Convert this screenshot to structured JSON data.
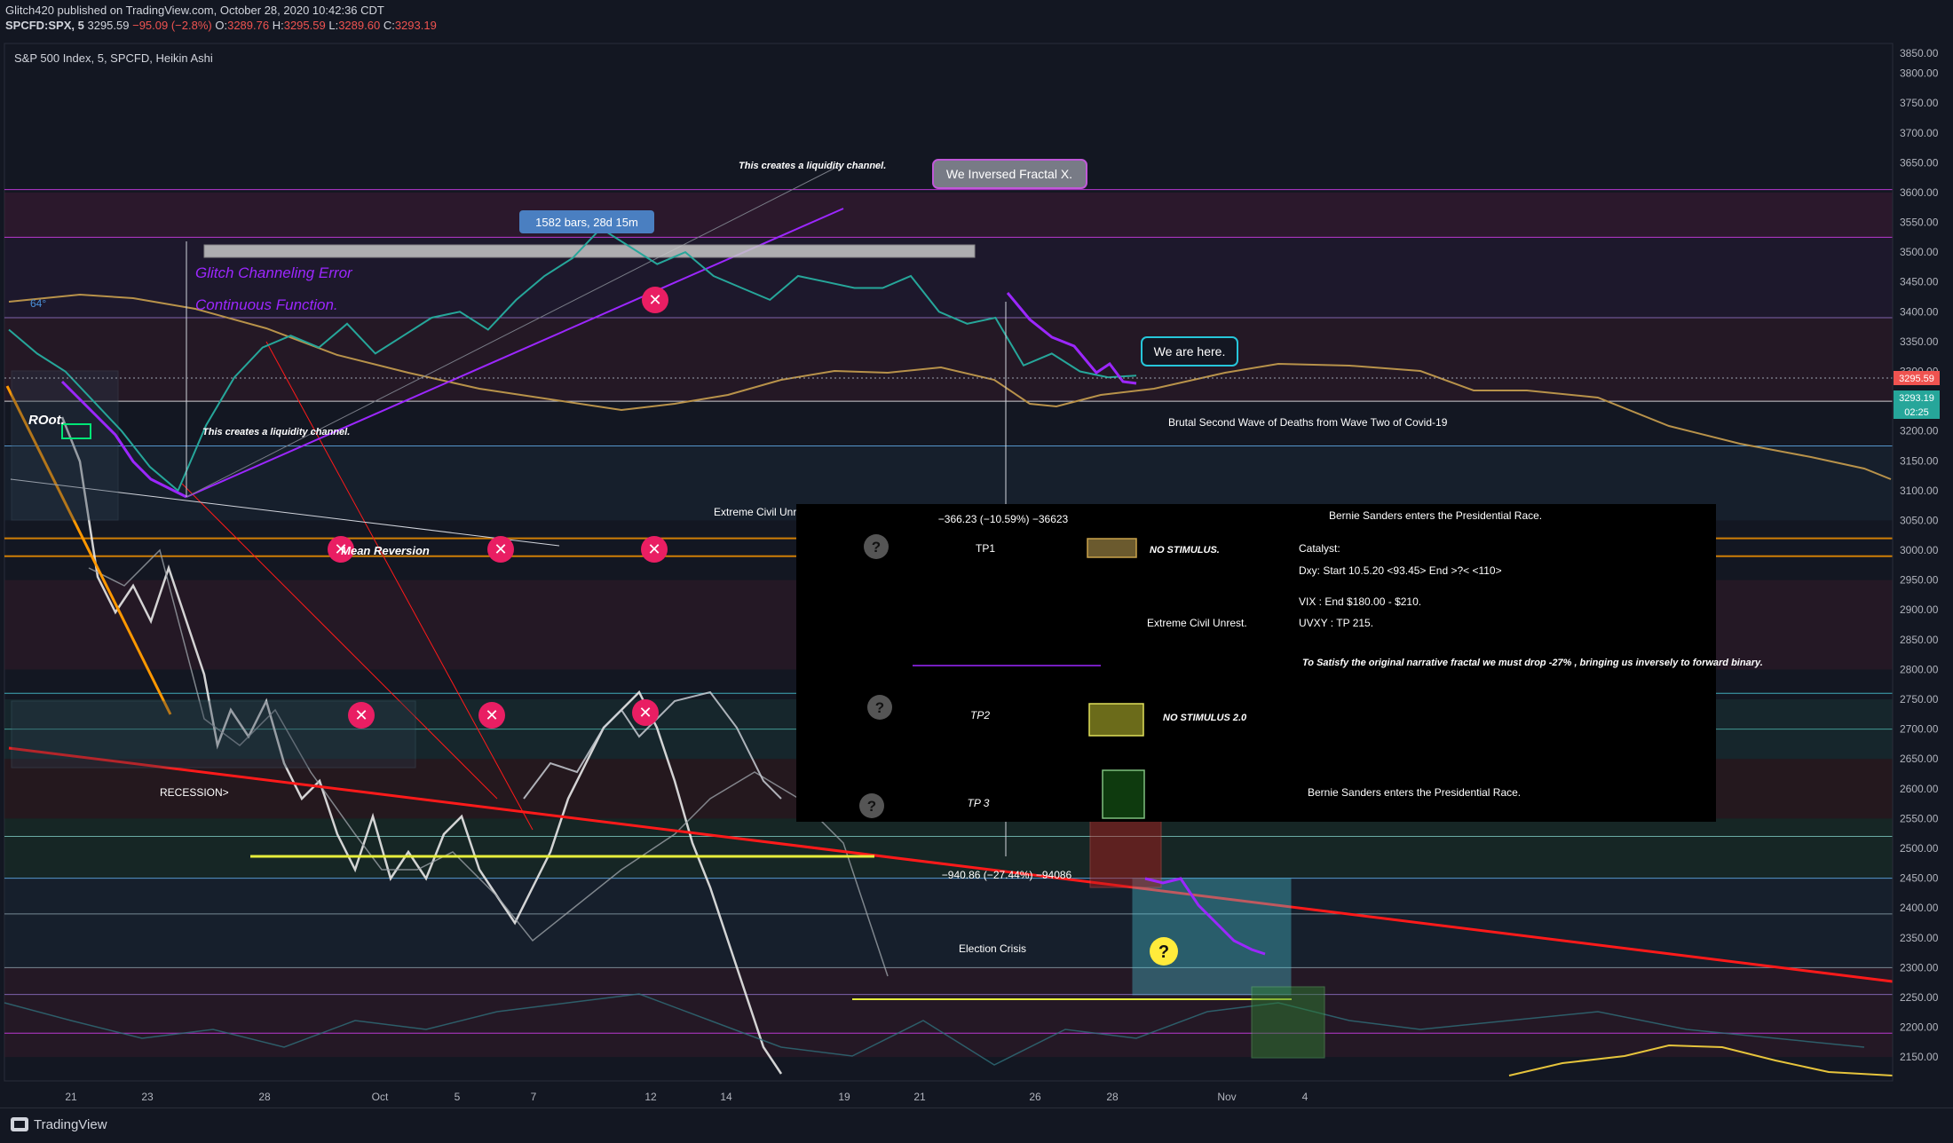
{
  "header": {
    "publisher_line": "Glitch420 published on TradingView.com, October 28, 2020 10:42:36 CDT",
    "symbol": "SPCFD:SPX, 5",
    "price": "3295.59",
    "change": "−95.09 (−2.8%)",
    "o_label": "O:",
    "o_value": "3289.76",
    "h_label": "H:",
    "h_value": "3295.59",
    "l_label": "L:",
    "l_value": "3289.60",
    "c_label": "C:",
    "c_value": "3293.19"
  },
  "legend": "S&P 500 Index, 5, SPCFD, Heikin Ashi",
  "footer": {
    "brand": "TradingView"
  },
  "colors": {
    "background": "#131722",
    "axis_text": "#b2b5be",
    "purple": "#9c27ff",
    "orange": "#ff9800",
    "red_trend": "#ff1a1a",
    "gold_ma": "#b8924a",
    "teal_box": "#4dd0e1",
    "candle_up": "#26a69a",
    "candle_down": "#ef5350"
  },
  "chart_data": {
    "type": "line",
    "title": "S&P 500 Index, 5, SPCFD, Heikin Ashi",
    "ylim": [
      2110,
      3850
    ],
    "y_ticks": [
      3800,
      3750,
      3700,
      3650,
      3600,
      3550,
      3500,
      3450,
      3400,
      3350,
      3300,
      3250,
      3200,
      3150,
      3100,
      3050,
      3000,
      2950,
      2900,
      2850,
      2800,
      2750,
      2700,
      2650,
      2600,
      2550,
      2500,
      2450,
      2400,
      2350,
      2300,
      2250,
      2200,
      2150
    ],
    "y_ticks_top_partial": "3850.00",
    "x_ticks": [
      "21",
      "23",
      "28",
      "Oct",
      "5",
      "7",
      "12",
      "14",
      "19",
      "21",
      "26",
      "28",
      "Nov",
      "4"
    ],
    "price_label": "3295.59",
    "price_label_2": "3293.19",
    "countdown": "02:25",
    "price_series": {
      "name": "SPX",
      "t": [
        0,
        1,
        2,
        3,
        4,
        5,
        6,
        7,
        8,
        9,
        10,
        11,
        12,
        13,
        14,
        15,
        16,
        17,
        18,
        19,
        20,
        21,
        22,
        23,
        24,
        25,
        26,
        27,
        28,
        29,
        30,
        31,
        32,
        33,
        34,
        35,
        36,
        37,
        38,
        39,
        40
      ],
      "y": [
        3370,
        3330,
        3300,
        3250,
        3200,
        3140,
        3100,
        3210,
        3290,
        3340,
        3360,
        3340,
        3380,
        3330,
        3360,
        3390,
        3400,
        3370,
        3420,
        3460,
        3490,
        3540,
        3510,
        3480,
        3500,
        3460,
        3440,
        3420,
        3460,
        3450,
        3440,
        3440,
        3460,
        3400,
        3380,
        3390,
        3310,
        3330,
        3300,
        3290,
        3293
      ]
    },
    "annotations": [
      "1582 bars, 28d 15m",
      "Glitch Channeling Error",
      "Continuous Function.",
      "This creates a liquidity channel.",
      "This creates a liquidity channel.",
      "We Inversed Fractal X.",
      "We are here.",
      "Brutal Second Wave of Deaths from Wave Two of Covid-19",
      "ROot.",
      "Mean Reversion",
      "RECESSION>",
      "Extreme Civil Unr",
      "Election Crisis",
      "−940.86 (−27.44%) −94086",
      "64°"
    ],
    "info_box": {
      "measure_top": "−366.23 (−10.59%) −36623",
      "tp1": "TP1",
      "tp1_note": "NO STIMULUS.",
      "tp2": "TP2",
      "tp2_note": "NO STIMULUS 2.0",
      "tp3": "TP 3",
      "bernie_top": "Bernie Sanders enters the Presidential Race.",
      "catalyst": "Catalyst:",
      "dxy": "Dxy: Start 10.5.20 <93.45> End >?< <110>",
      "vix": "VIX : End $180.00 - $210.",
      "uvxy": "UVXY : TP 215.",
      "civil": "Extreme Civil Unrest.",
      "narrative": "To Satisfy the original narrative fractal we must drop -27% , bringing us inversely to forward binary.",
      "bernie_bottom": "Bernie Sanders enters the Presidential Race."
    }
  }
}
